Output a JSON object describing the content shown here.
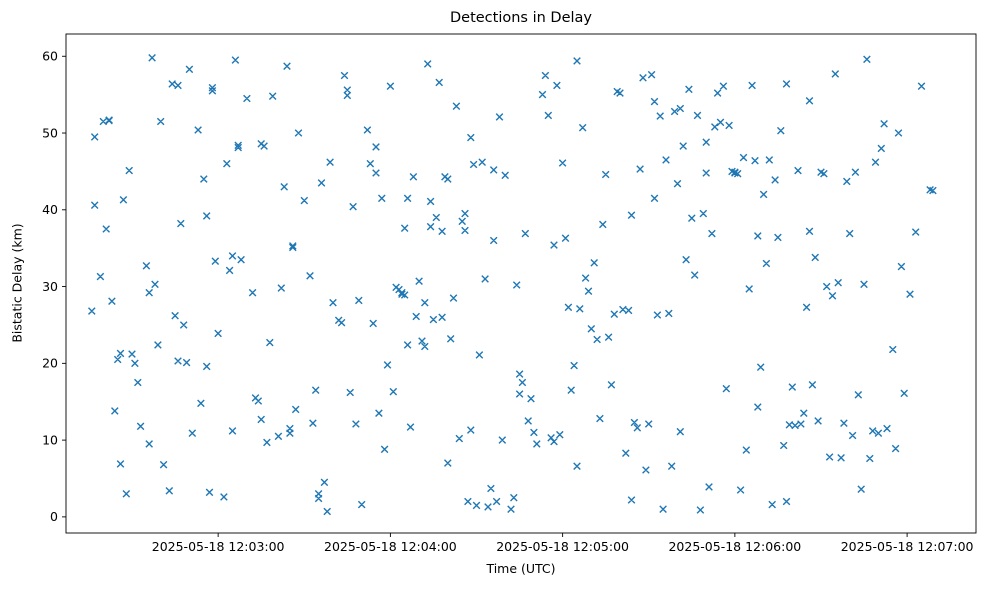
{
  "chart_data": {
    "type": "scatter",
    "title": "Detections in Delay",
    "xlabel": "Time (UTC)",
    "ylabel": "Bistatic Delay (km)",
    "marker": "x",
    "marker_color": "#1f77b4",
    "grid": false,
    "legend": null,
    "x_unit": "seconds after 2025-05-18 12:02:00 UTC",
    "xlim": [
      7,
      324
    ],
    "ylim": [
      -2.1,
      62.9
    ],
    "x_ticks": [
      {
        "t": 60,
        "label": "2025-05-18 12:03:00"
      },
      {
        "t": 120,
        "label": "2025-05-18 12:04:00"
      },
      {
        "t": 180,
        "label": "2025-05-18 12:05:00"
      },
      {
        "t": 240,
        "label": "2025-05-18 12:06:00"
      },
      {
        "t": 300,
        "label": "2025-05-18 12:07:00"
      }
    ],
    "y_ticks": [
      0,
      10,
      20,
      30,
      40,
      50,
      60
    ],
    "n_points": 310,
    "points": [
      [
        16,
        26.8
      ],
      [
        17,
        40.6
      ],
      [
        17,
        49.5
      ],
      [
        19,
        31.3
      ],
      [
        20,
        51.5
      ],
      [
        21,
        37.5
      ],
      [
        22,
        51.7
      ],
      [
        22,
        51.6
      ],
      [
        23,
        28.1
      ],
      [
        24,
        13.8
      ],
      [
        25,
        20.5
      ],
      [
        26,
        21.3
      ],
      [
        26,
        6.9
      ],
      [
        27,
        41.3
      ],
      [
        28,
        3.0
      ],
      [
        29,
        45.1
      ],
      [
        30,
        21.2
      ],
      [
        31,
        20.0
      ],
      [
        32,
        17.5
      ],
      [
        33,
        11.8
      ],
      [
        35,
        32.7
      ],
      [
        36,
        9.5
      ],
      [
        36,
        29.2
      ],
      [
        37,
        59.8
      ],
      [
        38,
        30.3
      ],
      [
        39,
        22.4
      ],
      [
        40,
        51.5
      ],
      [
        41,
        6.8
      ],
      [
        43,
        3.4
      ],
      [
        44,
        56.4
      ],
      [
        45,
        26.2
      ],
      [
        46,
        20.3
      ],
      [
        46,
        56.2
      ],
      [
        47,
        38.2
      ],
      [
        48,
        25.0
      ],
      [
        49,
        20.1
      ],
      [
        50,
        58.3
      ],
      [
        51,
        10.9
      ],
      [
        53,
        50.4
      ],
      [
        54,
        14.8
      ],
      [
        55,
        44.0
      ],
      [
        56,
        39.2
      ],
      [
        56,
        19.6
      ],
      [
        57,
        3.2
      ],
      [
        58,
        55.9
      ],
      [
        58,
        55.5
      ],
      [
        59,
        33.3
      ],
      [
        60,
        23.9
      ],
      [
        62,
        2.6
      ],
      [
        63,
        46.0
      ],
      [
        64,
        32.1
      ],
      [
        65,
        34.0
      ],
      [
        65,
        11.2
      ],
      [
        66,
        59.5
      ],
      [
        67,
        48.4
      ],
      [
        67,
        48.1
      ],
      [
        68,
        33.5
      ],
      [
        70,
        54.5
      ],
      [
        72,
        29.2
      ],
      [
        73,
        15.5
      ],
      [
        74,
        15.1
      ],
      [
        75,
        12.7
      ],
      [
        75,
        48.6
      ],
      [
        76,
        48.3
      ],
      [
        77,
        9.7
      ],
      [
        78,
        22.7
      ],
      [
        79,
        54.8
      ],
      [
        81,
        10.5
      ],
      [
        82,
        29.8
      ],
      [
        83,
        43.0
      ],
      [
        84,
        58.7
      ],
      [
        85,
        11.5
      ],
      [
        85,
        10.9
      ],
      [
        86,
        35.3
      ],
      [
        86,
        35.1
      ],
      [
        87,
        14.0
      ],
      [
        88,
        50.0
      ],
      [
        90,
        41.2
      ],
      [
        92,
        31.4
      ],
      [
        93,
        12.2
      ],
      [
        94,
        16.5
      ],
      [
        95,
        3.0
      ],
      [
        95,
        2.4
      ],
      [
        96,
        43.5
      ],
      [
        97,
        4.5
      ],
      [
        98,
        0.7
      ],
      [
        99,
        46.2
      ],
      [
        100,
        27.9
      ],
      [
        102,
        25.6
      ],
      [
        103,
        25.3
      ],
      [
        104,
        57.5
      ],
      [
        105,
        55.6
      ],
      [
        105,
        54.9
      ],
      [
        106,
        16.2
      ],
      [
        107,
        40.4
      ],
      [
        108,
        12.1
      ],
      [
        109,
        28.2
      ],
      [
        110,
        1.6
      ],
      [
        112,
        50.4
      ],
      [
        113,
        46.0
      ],
      [
        114,
        25.2
      ],
      [
        115,
        44.8
      ],
      [
        115,
        48.2
      ],
      [
        116,
        13.5
      ],
      [
        117,
        41.5
      ],
      [
        118,
        8.8
      ],
      [
        119,
        19.8
      ],
      [
        120,
        56.1
      ],
      [
        121,
        16.3
      ],
      [
        122,
        29.9
      ],
      [
        123,
        29.6
      ],
      [
        124,
        29.2
      ],
      [
        124,
        29.0
      ],
      [
        125,
        28.9
      ],
      [
        125,
        37.6
      ],
      [
        126,
        41.5
      ],
      [
        126,
        22.4
      ],
      [
        127,
        11.7
      ],
      [
        128,
        44.3
      ],
      [
        129,
        26.1
      ],
      [
        130,
        30.7
      ],
      [
        131,
        22.9
      ],
      [
        132,
        27.9
      ],
      [
        132,
        22.2
      ],
      [
        133,
        59.0
      ],
      [
        134,
        41.1
      ],
      [
        134,
        37.8
      ],
      [
        135,
        25.7
      ],
      [
        136,
        39.0
      ],
      [
        137,
        56.6
      ],
      [
        138,
        37.2
      ],
      [
        138,
        26.0
      ],
      [
        139,
        44.3
      ],
      [
        140,
        44.0
      ],
      [
        140,
        7.0
      ],
      [
        141,
        23.2
      ],
      [
        142,
        28.5
      ],
      [
        143,
        53.5
      ],
      [
        144,
        10.2
      ],
      [
        145,
        38.5
      ],
      [
        146,
        39.5
      ],
      [
        146,
        37.3
      ],
      [
        147,
        2.0
      ],
      [
        148,
        49.4
      ],
      [
        148,
        11.3
      ],
      [
        149,
        45.9
      ],
      [
        150,
        1.5
      ],
      [
        151,
        21.1
      ],
      [
        152,
        46.2
      ],
      [
        153,
        31.0
      ],
      [
        154,
        1.3
      ],
      [
        155,
        3.7
      ],
      [
        156,
        45.2
      ],
      [
        156,
        36.0
      ],
      [
        157,
        2.0
      ],
      [
        158,
        52.1
      ],
      [
        159,
        10.0
      ],
      [
        160,
        44.5
      ],
      [
        162,
        1.0
      ],
      [
        163,
        2.5
      ],
      [
        164,
        30.2
      ],
      [
        165,
        18.6
      ],
      [
        165,
        16.0
      ],
      [
        166,
        17.5
      ],
      [
        167,
        36.9
      ],
      [
        168,
        12.5
      ],
      [
        169,
        15.4
      ],
      [
        170,
        11.0
      ],
      [
        171,
        9.5
      ],
      [
        173,
        55.0
      ],
      [
        174,
        57.5
      ],
      [
        175,
        52.3
      ],
      [
        176,
        10.3
      ],
      [
        177,
        9.8
      ],
      [
        177,
        35.4
      ],
      [
        178,
        56.2
      ],
      [
        179,
        10.7
      ],
      [
        180,
        46.1
      ],
      [
        181,
        36.3
      ],
      [
        182,
        27.3
      ],
      [
        183,
        16.5
      ],
      [
        184,
        19.7
      ],
      [
        185,
        59.4
      ],
      [
        185,
        6.6
      ],
      [
        186,
        27.1
      ],
      [
        187,
        50.7
      ],
      [
        188,
        31.1
      ],
      [
        189,
        29.4
      ],
      [
        190,
        24.5
      ],
      [
        191,
        33.1
      ],
      [
        192,
        23.1
      ],
      [
        193,
        12.8
      ],
      [
        194,
        38.1
      ],
      [
        195,
        44.6
      ],
      [
        196,
        23.4
      ],
      [
        197,
        17.2
      ],
      [
        198,
        26.4
      ],
      [
        199,
        55.4
      ],
      [
        200,
        55.2
      ],
      [
        201,
        27.0
      ],
      [
        202,
        8.3
      ],
      [
        203,
        26.9
      ],
      [
        204,
        39.3
      ],
      [
        204,
        2.2
      ],
      [
        205,
        12.3
      ],
      [
        206,
        11.6
      ],
      [
        207,
        45.3
      ],
      [
        208,
        57.2
      ],
      [
        209,
        6.1
      ],
      [
        210,
        12.1
      ],
      [
        211,
        57.6
      ],
      [
        212,
        41.5
      ],
      [
        212,
        54.1
      ],
      [
        213,
        26.3
      ],
      [
        214,
        52.2
      ],
      [
        215,
        1.0
      ],
      [
        216,
        46.5
      ],
      [
        217,
        26.5
      ],
      [
        218,
        6.6
      ],
      [
        219,
        52.8
      ],
      [
        220,
        43.4
      ],
      [
        221,
        53.2
      ],
      [
        221,
        11.1
      ],
      [
        222,
        48.3
      ],
      [
        223,
        33.5
      ],
      [
        224,
        55.7
      ],
      [
        225,
        38.9
      ],
      [
        226,
        31.5
      ],
      [
        227,
        52.3
      ],
      [
        228,
        0.9
      ],
      [
        229,
        39.5
      ],
      [
        230,
        44.8
      ],
      [
        230,
        48.8
      ],
      [
        231,
        3.9
      ],
      [
        232,
        36.9
      ],
      [
        233,
        50.8
      ],
      [
        234,
        55.2
      ],
      [
        235,
        51.4
      ],
      [
        236,
        56.1
      ],
      [
        237,
        16.7
      ],
      [
        238,
        51.0
      ],
      [
        239,
        45.0
      ],
      [
        240,
        44.9
      ],
      [
        240,
        44.8
      ],
      [
        241,
        44.7
      ],
      [
        242,
        3.5
      ],
      [
        243,
        46.8
      ],
      [
        244,
        8.7
      ],
      [
        245,
        29.7
      ],
      [
        246,
        56.2
      ],
      [
        247,
        46.4
      ],
      [
        248,
        36.6
      ],
      [
        248,
        14.3
      ],
      [
        249,
        19.5
      ],
      [
        250,
        42.0
      ],
      [
        251,
        33.0
      ],
      [
        252,
        46.5
      ],
      [
        253,
        1.6
      ],
      [
        254,
        43.9
      ],
      [
        255,
        36.4
      ],
      [
        256,
        50.3
      ],
      [
        257,
        9.3
      ],
      [
        258,
        56.4
      ],
      [
        258,
        2.0
      ],
      [
        259,
        12.0
      ],
      [
        260,
        16.9
      ],
      [
        261,
        11.9
      ],
      [
        262,
        45.1
      ],
      [
        263,
        12.1
      ],
      [
        264,
        13.5
      ],
      [
        265,
        27.3
      ],
      [
        266,
        37.2
      ],
      [
        266,
        54.2
      ],
      [
        267,
        17.2
      ],
      [
        268,
        33.8
      ],
      [
        269,
        12.5
      ],
      [
        270,
        44.9
      ],
      [
        271,
        44.7
      ],
      [
        272,
        30.0
      ],
      [
        273,
        7.8
      ],
      [
        274,
        28.8
      ],
      [
        275,
        57.7
      ],
      [
        276,
        30.5
      ],
      [
        277,
        7.7
      ],
      [
        278,
        12.2
      ],
      [
        279,
        43.7
      ],
      [
        280,
        36.9
      ],
      [
        281,
        10.6
      ],
      [
        282,
        44.9
      ],
      [
        283,
        15.9
      ],
      [
        284,
        3.6
      ],
      [
        285,
        30.3
      ],
      [
        286,
        59.6
      ],
      [
        287,
        7.6
      ],
      [
        288,
        11.2
      ],
      [
        289,
        46.2
      ],
      [
        290,
        10.9
      ],
      [
        291,
        48.0
      ],
      [
        292,
        51.2
      ],
      [
        293,
        11.5
      ],
      [
        295,
        21.8
      ],
      [
        296,
        8.9
      ],
      [
        297,
        50.0
      ],
      [
        298,
        32.6
      ],
      [
        299,
        16.1
      ],
      [
        301,
        29.0
      ],
      [
        303,
        37.1
      ],
      [
        305,
        56.1
      ],
      [
        308,
        42.6
      ],
      [
        309,
        42.5
      ]
    ]
  }
}
